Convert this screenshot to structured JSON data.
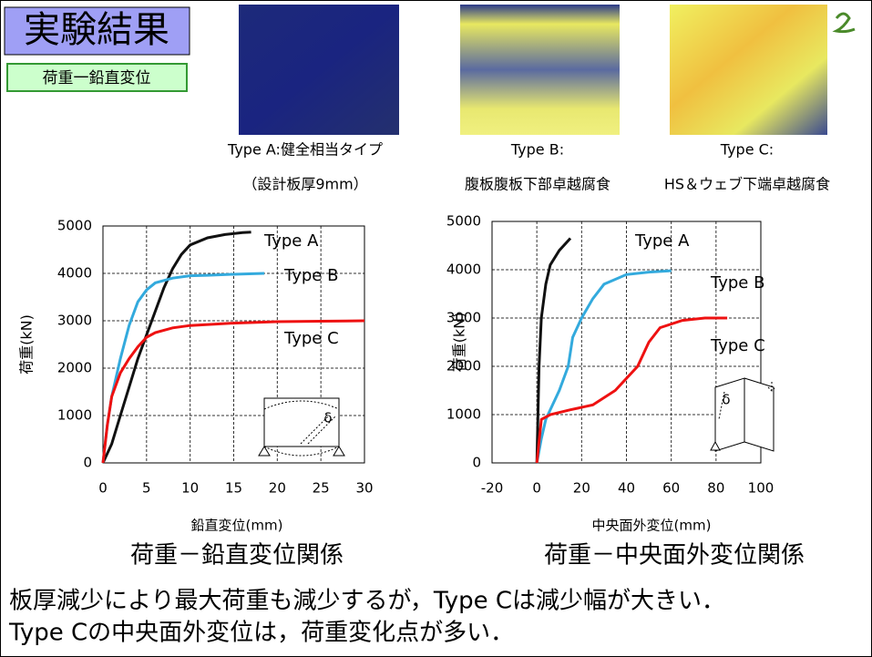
{
  "header": {
    "title": "実験結果",
    "subtitle": "荷重一鉛直変位"
  },
  "images": [
    {
      "caption": [
        "Type A:健全相当タイプ",
        "（設計板厚9mm）"
      ]
    },
    {
      "caption": [
        "Type B:",
        "腹板腹板下部卓越腐食"
      ]
    },
    {
      "caption": [
        "Type C:",
        "HS＆ウェブ下端卓越腐食"
      ]
    }
  ],
  "chart_data": [
    {
      "type": "line",
      "xlabel": "鉛直変位(mm)",
      "ylabel": "荷重(kN)",
      "caption": "荷重－鉛直変位関係",
      "xlim": [
        0,
        30
      ],
      "xticks": [
        0,
        5,
        10,
        15,
        20,
        25,
        30
      ],
      "ylim": [
        0,
        5000
      ],
      "yticks": [
        0,
        1000,
        2000,
        3000,
        4000,
        5000
      ],
      "grid": true,
      "inset_label": "δ",
      "series": [
        {
          "name": "Type A",
          "color": "#111111",
          "x": [
            0,
            1,
            2,
            3,
            4,
            5,
            6,
            7,
            8,
            9,
            10,
            12,
            14,
            16,
            17
          ],
          "values": [
            0,
            400,
            1000,
            1600,
            2200,
            2700,
            3200,
            3700,
            4100,
            4400,
            4600,
            4750,
            4820,
            4860,
            4870
          ]
        },
        {
          "name": "Type B",
          "color": "#33aadd",
          "x": [
            0,
            0.5,
            1,
            2,
            3,
            4,
            5,
            6,
            8,
            10,
            12,
            15,
            18.5
          ],
          "values": [
            0,
            800,
            1400,
            2200,
            2900,
            3400,
            3650,
            3800,
            3900,
            3950,
            3960,
            3980,
            4000
          ]
        },
        {
          "name": "Type C",
          "color": "#ee1111",
          "x": [
            0,
            0.5,
            1,
            2,
            3,
            4,
            5,
            6,
            8,
            10,
            15,
            20,
            25,
            30
          ],
          "values": [
            0,
            800,
            1400,
            1900,
            2200,
            2450,
            2650,
            2750,
            2850,
            2900,
            2950,
            2980,
            2990,
            3000
          ]
        }
      ]
    },
    {
      "type": "line",
      "xlabel": "中央面外変位(mm)",
      "ylabel": "荷重(kN)",
      "caption": "荷重－中央面外変位関係",
      "xlim": [
        -20,
        100
      ],
      "xticks": [
        -20,
        0,
        20,
        40,
        60,
        80,
        100
      ],
      "ylim": [
        0,
        5000
      ],
      "yticks": [
        0,
        1000,
        2000,
        3000,
        4000,
        5000
      ],
      "grid": true,
      "inset_label": "δ",
      "series": [
        {
          "name": "Type A",
          "color": "#111111",
          "x": [
            0,
            0.5,
            1,
            2,
            4,
            6,
            10,
            15
          ],
          "values": [
            0,
            1000,
            2000,
            3000,
            3700,
            4100,
            4400,
            4650
          ]
        },
        {
          "name": "Type B",
          "color": "#33aadd",
          "x": [
            0,
            2,
            4,
            6,
            10,
            14,
            16,
            20,
            25,
            30,
            40,
            50,
            60
          ],
          "values": [
            0,
            500,
            900,
            1100,
            1500,
            2000,
            2600,
            3000,
            3400,
            3700,
            3900,
            3950,
            3980
          ]
        },
        {
          "name": "Type C",
          "color": "#ee1111",
          "x": [
            0,
            2,
            6,
            15,
            25,
            35,
            45,
            50,
            55,
            65,
            75,
            85
          ],
          "values": [
            0,
            900,
            1000,
            1100,
            1200,
            1500,
            2000,
            2500,
            2800,
            2950,
            3000,
            3000
          ]
        }
      ]
    }
  ],
  "conclusion": [
    "板厚減少により最大荷重も減少するが，Type Cは減少幅が大きい．",
    "Type Cの中央面外変位は，荷重変化点が多い．"
  ]
}
